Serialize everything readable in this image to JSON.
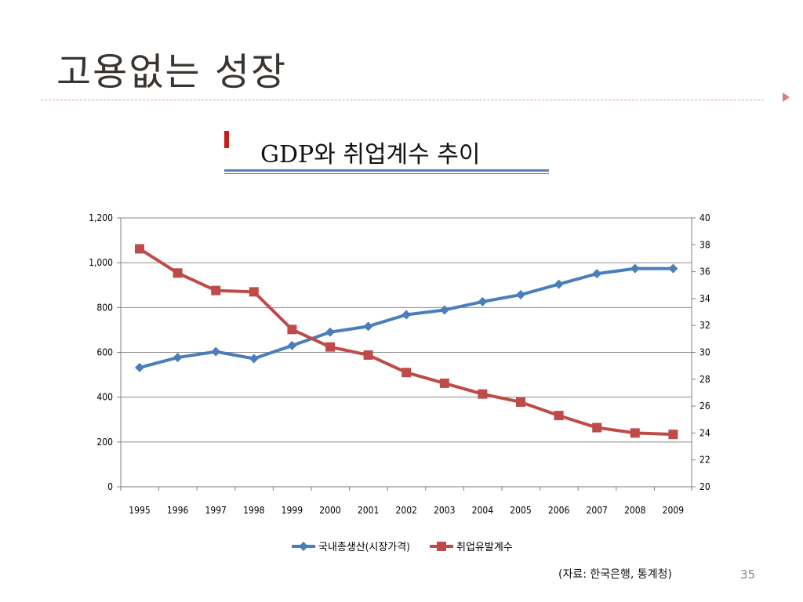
{
  "slide": {
    "title": "고용없는 성장",
    "subtitle": "GDP와 취업계수 추이",
    "source": "(자료: 한국은행, 통계청)",
    "page_number": "35"
  },
  "chart_data": {
    "type": "line",
    "categories": [
      "1995",
      "1996",
      "1997",
      "1998",
      "1999",
      "2000",
      "2001",
      "2002",
      "2003",
      "2004",
      "2005",
      "2006",
      "2007",
      "2008",
      "2009"
    ],
    "series": [
      {
        "name": "국내총생산(시장가격)",
        "axis": "left",
        "color": "#4a7ebb",
        "marker": "diamond",
        "values": [
          532,
          577,
          603,
          572,
          630,
          690,
          716,
          768,
          789,
          826,
          857,
          904,
          951,
          974,
          974
        ]
      },
      {
        "name": "취업유발계수",
        "axis": "right",
        "color": "#be4b48",
        "marker": "square",
        "values": [
          37.7,
          35.9,
          34.6,
          34.5,
          31.7,
          30.4,
          29.8,
          28.5,
          27.7,
          26.9,
          26.3,
          25.3,
          24.4,
          24.0,
          23.9
        ]
      }
    ],
    "y_left": {
      "min": 0,
      "max": 1200,
      "ticks": [
        0,
        200,
        400,
        600,
        800,
        1000,
        1200
      ],
      "tick_labels": [
        "0",
        "200",
        "400",
        "600",
        "800",
        "1,000",
        "1,200"
      ]
    },
    "y_right": {
      "min": 20,
      "max": 40,
      "ticks": [
        20,
        22,
        24,
        26,
        28,
        30,
        32,
        34,
        36,
        38,
        40
      ],
      "tick_labels": [
        "20",
        "22",
        "24",
        "26",
        "28",
        "30",
        "32",
        "34",
        "36",
        "38",
        "40"
      ]
    },
    "grid": "horizontal",
    "legend_position": "bottom",
    "colors": {
      "gridline": "#8c8c8c",
      "axis": "#7f7f7f",
      "text": "#000000"
    }
  }
}
